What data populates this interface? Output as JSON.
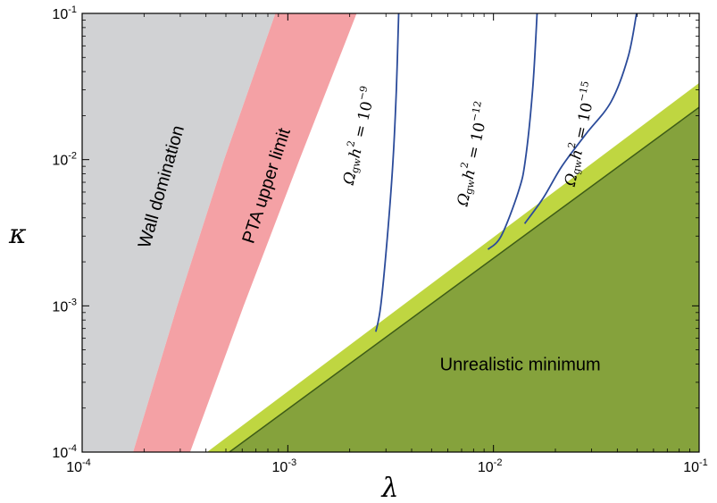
{
  "chart_data": {
    "type": "area",
    "xlabel": "λ",
    "ylabel": "κ",
    "xscale": "log",
    "yscale": "log",
    "xlim": [
      0.0001,
      0.1
    ],
    "ylim": [
      0.0001,
      0.1
    ],
    "x_ticks": [
      {
        "value": 0.0001,
        "base": "10",
        "exp": "-4"
      },
      {
        "value": 0.001,
        "base": "10",
        "exp": "-3"
      },
      {
        "value": 0.01,
        "base": "10",
        "exp": "-2"
      },
      {
        "value": 0.1,
        "base": "10",
        "exp": "-1"
      }
    ],
    "y_ticks": [
      {
        "value": 0.0001,
        "base": "10",
        "exp": "-4"
      },
      {
        "value": 0.001,
        "base": "10",
        "exp": "-3"
      },
      {
        "value": 0.01,
        "base": "10",
        "exp": "-2"
      },
      {
        "value": 0.1,
        "base": "10",
        "exp": "-1"
      }
    ],
    "grid": false,
    "regions": [
      {
        "name": "Wall domination",
        "color": "#d1d2d4",
        "polygon": [
          [
            0.0001,
            0.0001
          ],
          [
            0.000177,
            0.0001
          ],
          [
            0.00029,
            0.001
          ],
          [
            0.00049,
            0.01
          ],
          [
            0.00087,
            0.1
          ],
          [
            0.0001,
            0.1
          ]
        ]
      },
      {
        "name": "PTA upper limit",
        "color": "#f4a1a5",
        "polygon": [
          [
            0.000177,
            0.0001
          ],
          [
            0.00029,
            0.001
          ],
          [
            0.00049,
            0.01
          ],
          [
            0.00087,
            0.1
          ],
          [
            0.00216,
            0.1
          ],
          [
            0.00114,
            0.01
          ],
          [
            0.00061,
            0.001
          ],
          [
            0.000335,
            0.0001
          ]
        ]
      },
      {
        "name": "light-green band",
        "color": "#bfd641",
        "polygon": [
          [
            0.000405,
            0.0001
          ],
          [
            0.1,
            0.0334
          ],
          [
            0.1,
            0.0001
          ]
        ]
      },
      {
        "name": "Unrealistic minimum",
        "color": "#85a23c",
        "polygon": [
          [
            0.00052,
            0.0001
          ],
          [
            0.1,
            0.0228
          ],
          [
            0.1,
            0.0001
          ]
        ]
      }
    ],
    "boundary_lines": [
      {
        "color": "#3e5c17",
        "points": [
          [
            0.00052,
            0.0001
          ],
          [
            0.1,
            0.0228
          ]
        ]
      }
    ],
    "series": [
      {
        "name": "Ω_gw h² = 10⁻⁹",
        "color": "#2b4b9a",
        "points": [
          [
            0.00268,
            0.000665
          ],
          [
            0.00283,
            0.001
          ],
          [
            0.00305,
            0.003
          ],
          [
            0.00325,
            0.01
          ],
          [
            0.00337,
            0.03
          ],
          [
            0.00346,
            0.1
          ]
        ]
      },
      {
        "name": "Ω_gw h² = 10⁻¹²",
        "color": "#2b4b9a",
        "points": [
          [
            0.0094,
            0.00243
          ],
          [
            0.0109,
            0.003
          ],
          [
            0.0132,
            0.006
          ],
          [
            0.0143,
            0.01
          ],
          [
            0.0155,
            0.03
          ],
          [
            0.0163,
            0.1
          ]
        ]
      },
      {
        "name": "Ω_gw h² = 10⁻¹⁵",
        "color": "#2b4b9a",
        "points": [
          [
            0.01418,
            0.00365
          ],
          [
            0.0175,
            0.0055
          ],
          [
            0.0215,
            0.009
          ],
          [
            0.0282,
            0.015
          ],
          [
            0.0374,
            0.025
          ],
          [
            0.0451,
            0.05
          ],
          [
            0.0496,
            0.1
          ]
        ]
      }
    ],
    "annotations": [
      {
        "text": "Wall domination",
        "x": 0.000245,
        "y": 0.0065,
        "angle": -74
      },
      {
        "text": "PTA upper limit",
        "x": 0.000795,
        "y": 0.0066,
        "angle": -72
      },
      {
        "text": "Unrealistic minimum",
        "x": 0.0135,
        "y": 0.00039,
        "angle": 0
      }
    ],
    "curve_labels": [
      {
        "prefix": "Ω",
        "sub": "gw",
        "mid": "h",
        "sup1": "2",
        "eq": " = 10",
        "sup2": "−9",
        "x": 0.00224,
        "y": 0.0145,
        "angle": -77
      },
      {
        "prefix": "Ω",
        "sub": "gw",
        "mid": "h",
        "sup1": "2",
        "eq": " = 10",
        "sup2": "−12",
        "x": 0.00803,
        "y": 0.0109,
        "angle": -78
      },
      {
        "prefix": "Ω",
        "sub": "gw",
        "mid": "h",
        "sup1": "2",
        "eq": " = 10",
        "sup2": "−15",
        "x": 0.0267,
        "y": 0.0149,
        "angle": -78
      }
    ]
  }
}
